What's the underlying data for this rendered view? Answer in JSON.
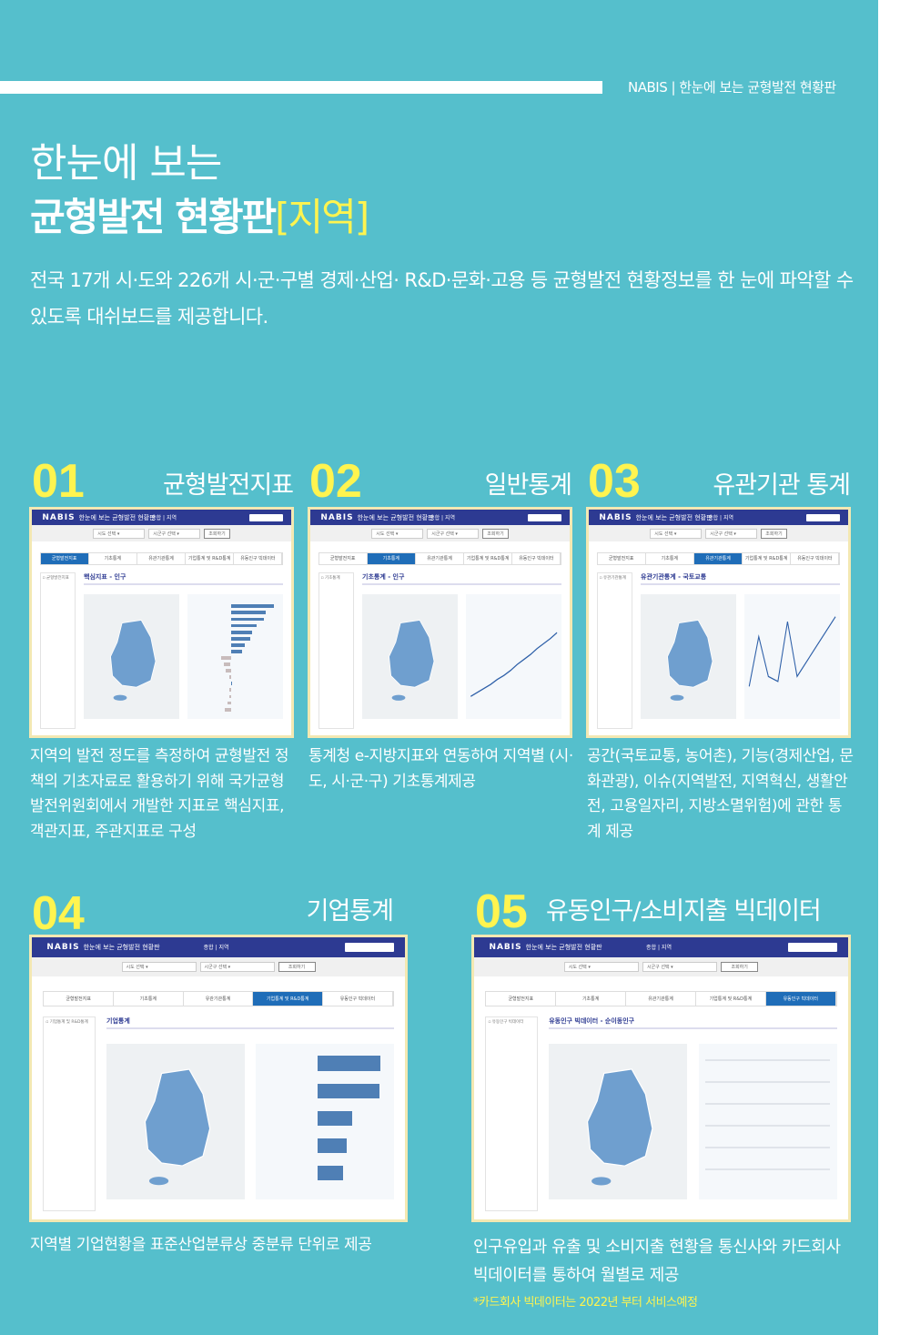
{
  "header": {
    "tagline": "NABIS | 한눈에 보는 균형발전 현황판"
  },
  "hero": {
    "title_line1": "한눈에 보는",
    "title_line2": "균형발전 현황판",
    "title_highlight": "[지역]",
    "intro": "전국 17개 시·도와 226개 시·군·구별 경제·산업· R&D·문화·고용 등 균형발전 현황정보를 한 눈에 파악할 수 있도록 대쉬보드를 제공합니다."
  },
  "colors": {
    "background": "#55bfcc",
    "accent": "#fff44f",
    "navy": "#2d3a92",
    "tab_active": "#1f6db8"
  },
  "dashboard": {
    "logo": "NABIS",
    "subtitle": "한눈에 보는 균형발전 현황판",
    "nav": "종합 | 지역",
    "select_sido": "시도 선택",
    "select_sigungu": "시군구 선택",
    "search_button": "조회하기",
    "tabs": [
      "균형발전지표",
      "기초통계",
      "유관기관통계",
      "기업통계 및 R&D통계",
      "유동인구 빅데이터"
    ]
  },
  "sections": [
    {
      "number": "01",
      "title": "균형발전지표",
      "desc": "지역의 발전 정도를 측정하여 균형발전 정책의 기초자료로 활용하기 위해 국가균형발전위원회에서 개발한 지표로 핵심지표, 객관지표, 주관지표로 구성",
      "active_tab": 0,
      "panel_title": "핵심지표 - 인구",
      "sidebar": "균형발전지표",
      "chart": "bars",
      "values": [
        95,
        78,
        74,
        58,
        48,
        44,
        32,
        26,
        -22,
        -16,
        -12,
        -3,
        0,
        -4,
        -4,
        -7,
        -14
      ]
    },
    {
      "number": "02",
      "title": "일반통계",
      "desc": "통계청 e-지방지표와 연동하여 지역별 (시·도, 시·군·구) 기초통계제공",
      "active_tab": 1,
      "panel_title": "기초통계 - 인구",
      "sidebar": "기초통계",
      "chart": "line",
      "values": [
        10,
        14,
        18,
        22,
        27,
        31,
        36,
        42,
        47,
        52,
        58,
        63,
        68,
        74
      ]
    },
    {
      "number": "03",
      "title": "유관기관 통계",
      "desc": "공간(국토교통, 농어촌), 기능(경제산업, 문화관광), 이슈(지역발전, 지역혁신, 생활안전, 고용일자리, 지방소멸위험)에 관한 통계 제공",
      "active_tab": 2,
      "panel_title": "유관기관통계 - 국토교통",
      "sidebar": "유관기관통계",
      "chart": "line",
      "values": [
        20,
        70,
        30,
        25,
        85,
        30,
        45,
        60,
        75,
        90
      ]
    },
    {
      "number": "04",
      "title": "기업통계",
      "desc": "지역별 기업현황을 표준산업분류상 중분류 단위로 제공",
      "active_tab": 3,
      "panel_title": "기업통계",
      "sidebar": "기업통계 및 R&D통계",
      "chart": "bars",
      "values": [
        90,
        89,
        50,
        42,
        36
      ]
    },
    {
      "number": "05",
      "title": "유동인구/소비지출 빅데이터",
      "desc": "인구유입과 유출 및 소비지출 현황을 통신사와 카드회사 빅데이터를 통하여 월별로 제공",
      "active_tab": 4,
      "panel_title": "유동인구 빅데이터 - 순이동인구",
      "sidebar": "유동인구 빅데이터",
      "chart": "table",
      "values": [
        5,
        5,
        5,
        5,
        5,
        5
      ]
    }
  ],
  "footnote": "*카드회사 빅데이터는 2022년 부터 서비스예정"
}
